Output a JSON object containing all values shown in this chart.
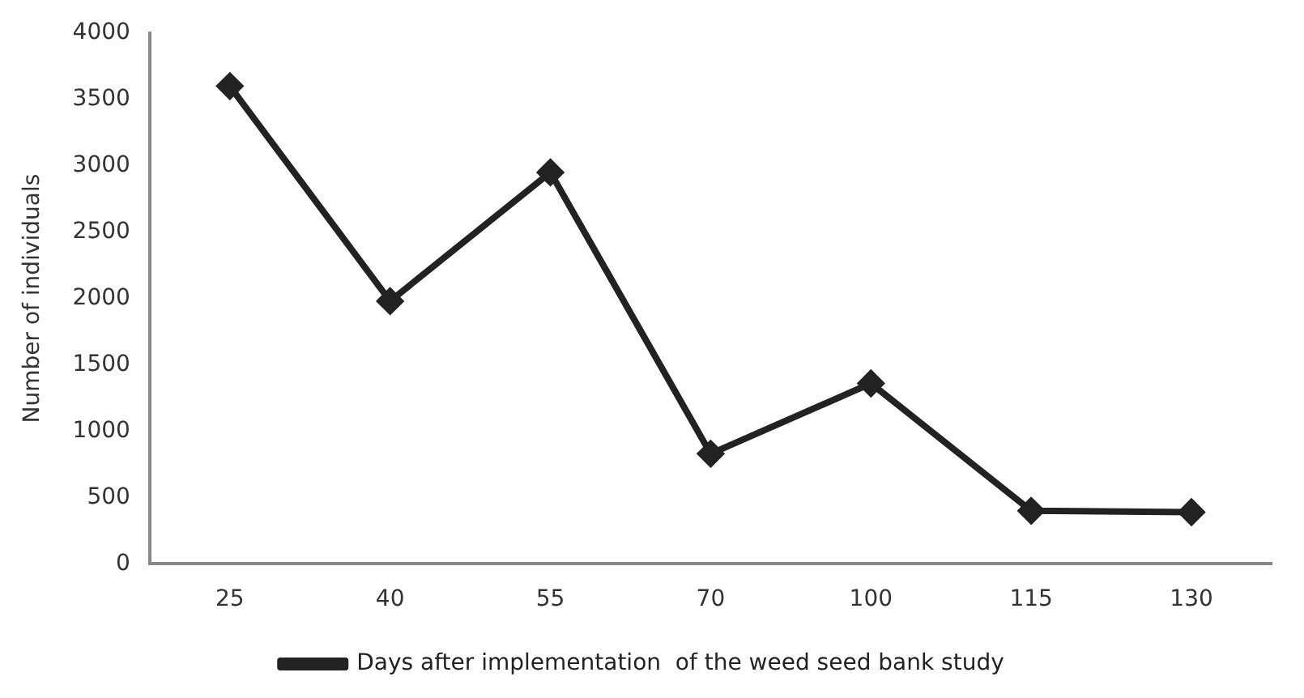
{
  "chart_data": {
    "type": "line",
    "ylabel": "Number of individuals",
    "categories": [
      "25",
      "40",
      "55",
      "70",
      "100",
      "115",
      "130"
    ],
    "series": [
      {
        "name": "Days after implementation  of the weed seed bank study",
        "color": "#222222",
        "values": [
          3600,
          1980,
          2950,
          830,
          1360,
          400,
          390
        ]
      }
    ],
    "ylim": [
      0,
      4000
    ],
    "yticks": [
      0,
      500,
      1000,
      1500,
      2000,
      2500,
      3000,
      3500,
      4000
    ],
    "grid": false,
    "legend": "bottom",
    "marker": "diamond",
    "line_style": "solid"
  }
}
